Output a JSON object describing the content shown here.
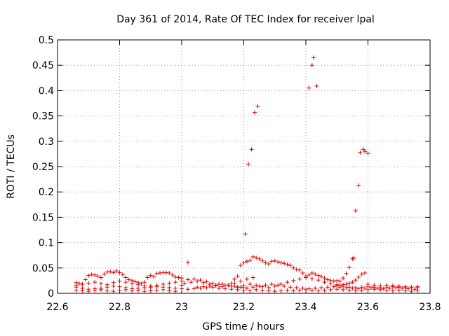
{
  "chart_data": {
    "type": "scatter",
    "title": "Day 361 of 2014, Rate Of TEC Index for receiver lpal",
    "xlabel": "GPS time / hours",
    "ylabel": "ROTI / TECUs",
    "xlim": [
      22.6,
      23.8
    ],
    "ylim": [
      0,
      0.5
    ],
    "xticks": [
      22.6,
      22.8,
      23,
      23.2,
      23.4,
      23.6,
      23.8
    ],
    "xtick_labels": [
      "22.6",
      "22.8",
      "23",
      "23.2",
      "23.4",
      "23.6",
      "23.8"
    ],
    "yticks": [
      0,
      0.05,
      0.1,
      0.15,
      0.2,
      0.25,
      0.3,
      0.35,
      0.4,
      0.45,
      0.5
    ],
    "ytick_labels": [
      "0",
      "0.05",
      "0.1",
      "0.15",
      "0.2",
      "0.25",
      "0.3",
      "0.35",
      "0.4",
      "0.45",
      "0.5"
    ],
    "grid": true,
    "marker": "+",
    "marker_color": "#e00000",
    "series": [
      {
        "name": "ROTI",
        "points": [
          [
            22.66,
            0.021
          ],
          [
            22.67,
            0.019
          ],
          [
            22.68,
            0.018
          ],
          [
            22.69,
            0.027
          ],
          [
            22.7,
            0.035
          ],
          [
            22.71,
            0.037
          ],
          [
            22.72,
            0.036
          ],
          [
            22.73,
            0.034
          ],
          [
            22.74,
            0.031
          ],
          [
            22.75,
            0.038
          ],
          [
            22.76,
            0.042
          ],
          [
            22.77,
            0.043
          ],
          [
            22.78,
            0.041
          ],
          [
            22.79,
            0.044
          ],
          [
            22.8,
            0.041
          ],
          [
            22.81,
            0.037
          ],
          [
            22.82,
            0.031
          ],
          [
            22.83,
            0.027
          ],
          [
            22.84,
            0.025
          ],
          [
            22.85,
            0.023
          ],
          [
            22.86,
            0.021
          ],
          [
            22.87,
            0.019
          ],
          [
            22.88,
            0.022
          ],
          [
            22.89,
            0.031
          ],
          [
            22.9,
            0.035
          ],
          [
            22.91,
            0.033
          ],
          [
            22.92,
            0.039
          ],
          [
            22.93,
            0.04
          ],
          [
            22.94,
            0.041
          ],
          [
            22.95,
            0.041
          ],
          [
            22.96,
            0.04
          ],
          [
            22.97,
            0.036
          ],
          [
            22.98,
            0.032
          ],
          [
            22.99,
            0.031
          ],
          [
            23.0,
            0.03
          ],
          [
            22.66,
            0.012
          ],
          [
            22.68,
            0.01
          ],
          [
            22.7,
            0.008
          ],
          [
            22.72,
            0.009
          ],
          [
            22.74,
            0.01
          ],
          [
            22.76,
            0.012
          ],
          [
            22.78,
            0.014
          ],
          [
            22.8,
            0.013
          ],
          [
            22.82,
            0.011
          ],
          [
            22.84,
            0.009
          ],
          [
            22.86,
            0.01
          ],
          [
            22.88,
            0.011
          ],
          [
            22.9,
            0.012
          ],
          [
            22.92,
            0.013
          ],
          [
            22.94,
            0.012
          ],
          [
            22.96,
            0.011
          ],
          [
            22.98,
            0.01
          ],
          [
            23.0,
            0.009
          ],
          [
            23.02,
            0.008
          ],
          [
            23.04,
            0.009
          ],
          [
            23.06,
            0.01
          ],
          [
            23.08,
            0.011
          ],
          [
            23.1,
            0.012
          ],
          [
            23.12,
            0.01
          ],
          [
            23.14,
            0.009
          ],
          [
            23.16,
            0.008
          ],
          [
            23.18,
            0.007
          ],
          [
            22.66,
            0.006
          ],
          [
            22.68,
            0.005
          ],
          [
            22.7,
            0.004
          ],
          [
            22.72,
            0.006
          ],
          [
            22.74,
            0.007
          ],
          [
            22.76,
            0.005
          ],
          [
            22.78,
            0.004
          ],
          [
            22.8,
            0.006
          ],
          [
            22.82,
            0.007
          ],
          [
            22.84,
            0.005
          ],
          [
            22.86,
            0.006
          ],
          [
            22.88,
            0.004
          ],
          [
            22.9,
            0.005
          ],
          [
            22.92,
            0.006
          ],
          [
            22.94,
            0.007
          ],
          [
            22.96,
            0.005
          ],
          [
            22.98,
            0.004
          ],
          [
            22.66,
            0.016
          ],
          [
            22.68,
            0.018
          ],
          [
            22.7,
            0.02
          ],
          [
            22.72,
            0.022
          ],
          [
            22.74,
            0.019
          ],
          [
            22.76,
            0.017
          ],
          [
            22.78,
            0.021
          ],
          [
            22.8,
            0.024
          ],
          [
            22.82,
            0.022
          ],
          [
            22.84,
            0.019
          ],
          [
            22.86,
            0.017
          ],
          [
            22.88,
            0.015
          ],
          [
            22.9,
            0.014
          ],
          [
            22.92,
            0.016
          ],
          [
            22.94,
            0.018
          ],
          [
            22.96,
            0.02
          ],
          [
            22.98,
            0.022
          ],
          [
            23.0,
            0.024
          ],
          [
            23.02,
            0.027
          ],
          [
            23.04,
            0.028
          ],
          [
            23.06,
            0.026
          ],
          [
            23.08,
            0.023
          ],
          [
            23.1,
            0.02
          ],
          [
            23.12,
            0.018
          ],
          [
            23.14,
            0.016
          ],
          [
            23.16,
            0.014
          ],
          [
            23.18,
            0.012
          ],
          [
            23.2,
            0.011
          ],
          [
            23.02,
            0.061
          ],
          [
            23.0,
            0.016
          ],
          [
            23.01,
            0.02
          ],
          [
            23.03,
            0.022
          ],
          [
            23.05,
            0.024
          ],
          [
            23.07,
            0.021
          ],
          [
            23.09,
            0.018
          ],
          [
            23.11,
            0.015
          ],
          [
            23.13,
            0.013
          ],
          [
            23.15,
            0.016
          ],
          [
            23.17,
            0.02
          ],
          [
            23.19,
            0.024
          ],
          [
            23.21,
            0.028
          ],
          [
            23.23,
            0.031
          ],
          [
            23.05,
            0.012
          ],
          [
            23.07,
            0.013
          ],
          [
            23.09,
            0.014
          ],
          [
            23.11,
            0.016
          ],
          [
            23.13,
            0.018
          ],
          [
            23.15,
            0.016
          ],
          [
            23.17,
            0.014
          ],
          [
            23.19,
            0.012
          ],
          [
            23.21,
            0.01
          ],
          [
            23.23,
            0.012
          ],
          [
            23.25,
            0.014
          ],
          [
            23.27,
            0.016
          ],
          [
            23.29,
            0.018
          ],
          [
            23.31,
            0.016
          ],
          [
            23.33,
            0.014
          ],
          [
            23.35,
            0.012
          ],
          [
            23.37,
            0.011
          ],
          [
            23.39,
            0.01
          ],
          [
            23.41,
            0.009
          ],
          [
            23.43,
            0.01
          ],
          [
            23.45,
            0.011
          ],
          [
            23.47,
            0.012
          ],
          [
            23.49,
            0.013
          ],
          [
            23.51,
            0.012
          ],
          [
            23.53,
            0.011
          ],
          [
            23.55,
            0.01
          ],
          [
            23.57,
            0.009
          ],
          [
            23.59,
            0.01
          ],
          [
            23.61,
            0.011
          ],
          [
            23.63,
            0.01
          ],
          [
            23.65,
            0.009
          ],
          [
            23.67,
            0.01
          ],
          [
            23.69,
            0.011
          ],
          [
            23.71,
            0.01
          ],
          [
            23.73,
            0.009
          ],
          [
            23.75,
            0.008
          ],
          [
            23.16,
            0.02
          ],
          [
            23.17,
            0.028
          ],
          [
            23.18,
            0.034
          ],
          [
            23.19,
            0.055
          ],
          [
            23.2,
            0.06
          ],
          [
            23.205,
            0.117
          ],
          [
            23.21,
            0.063
          ],
          [
            23.215,
            0.255
          ],
          [
            23.22,
            0.065
          ],
          [
            23.225,
            0.284
          ],
          [
            23.23,
            0.072
          ],
          [
            23.235,
            0.357
          ],
          [
            23.24,
            0.07
          ],
          [
            23.245,
            0.369
          ],
          [
            23.25,
            0.068
          ],
          [
            23.26,
            0.064
          ],
          [
            23.27,
            0.06
          ],
          [
            23.28,
            0.058
          ],
          [
            23.29,
            0.063
          ],
          [
            23.3,
            0.064
          ],
          [
            23.31,
            0.062
          ],
          [
            23.32,
            0.06
          ],
          [
            23.33,
            0.059
          ],
          [
            23.34,
            0.057
          ],
          [
            23.35,
            0.055
          ],
          [
            23.36,
            0.05
          ],
          [
            23.37,
            0.047
          ],
          [
            23.38,
            0.046
          ],
          [
            23.39,
            0.04
          ],
          [
            23.4,
            0.034
          ],
          [
            23.41,
            0.036
          ],
          [
            23.42,
            0.04
          ],
          [
            23.43,
            0.038
          ],
          [
            23.44,
            0.035
          ],
          [
            23.45,
            0.033
          ],
          [
            23.46,
            0.03
          ],
          [
            23.47,
            0.027
          ],
          [
            23.48,
            0.025
          ],
          [
            23.49,
            0.024
          ],
          [
            23.5,
            0.025
          ],
          [
            23.51,
            0.024
          ],
          [
            23.52,
            0.03
          ],
          [
            23.53,
            0.039
          ],
          [
            23.54,
            0.051
          ],
          [
            23.55,
            0.068
          ],
          [
            23.555,
            0.07
          ],
          [
            23.41,
            0.405
          ],
          [
            23.42,
            0.45
          ],
          [
            23.425,
            0.465
          ],
          [
            23.435,
            0.409
          ],
          [
            23.56,
            0.163
          ],
          [
            23.57,
            0.213
          ],
          [
            23.575,
            0.278
          ],
          [
            23.585,
            0.284
          ],
          [
            23.59,
            0.28
          ],
          [
            23.6,
            0.276
          ],
          [
            23.59,
            0.04
          ],
          [
            23.58,
            0.038
          ],
          [
            23.57,
            0.032
          ],
          [
            23.56,
            0.026
          ],
          [
            23.55,
            0.022
          ],
          [
            23.54,
            0.02
          ],
          [
            23.53,
            0.018
          ],
          [
            23.52,
            0.017
          ],
          [
            23.51,
            0.016
          ],
          [
            23.5,
            0.015
          ],
          [
            23.18,
            0.012
          ],
          [
            23.2,
            0.015
          ],
          [
            23.22,
            0.018
          ],
          [
            23.24,
            0.016
          ],
          [
            23.26,
            0.013
          ],
          [
            23.28,
            0.011
          ],
          [
            23.3,
            0.014
          ],
          [
            23.32,
            0.018
          ],
          [
            23.34,
            0.022
          ],
          [
            23.36,
            0.025
          ],
          [
            23.38,
            0.028
          ],
          [
            23.4,
            0.031
          ],
          [
            23.42,
            0.029
          ],
          [
            23.44,
            0.026
          ],
          [
            23.46,
            0.022
          ],
          [
            23.48,
            0.019
          ],
          [
            23.5,
            0.017
          ],
          [
            23.52,
            0.014
          ],
          [
            23.54,
            0.012
          ],
          [
            23.56,
            0.011
          ],
          [
            23.58,
            0.012
          ],
          [
            23.6,
            0.013
          ],
          [
            23.62,
            0.012
          ],
          [
            23.64,
            0.011
          ],
          [
            23.66,
            0.012
          ],
          [
            23.68,
            0.013
          ],
          [
            23.7,
            0.012
          ],
          [
            23.72,
            0.011
          ],
          [
            23.74,
            0.012
          ],
          [
            23.76,
            0.011
          ],
          [
            23.2,
            0.006
          ],
          [
            23.22,
            0.005
          ],
          [
            23.24,
            0.007
          ],
          [
            23.26,
            0.006
          ],
          [
            23.28,
            0.005
          ],
          [
            23.3,
            0.004
          ],
          [
            23.32,
            0.005
          ],
          [
            23.34,
            0.006
          ],
          [
            23.36,
            0.005
          ],
          [
            23.38,
            0.006
          ],
          [
            23.4,
            0.007
          ],
          [
            23.42,
            0.006
          ],
          [
            23.44,
            0.005
          ],
          [
            23.46,
            0.006
          ],
          [
            23.48,
            0.007
          ],
          [
            23.5,
            0.008
          ],
          [
            23.52,
            0.007
          ],
          [
            23.54,
            0.006
          ],
          [
            23.56,
            0.005
          ],
          [
            23.58,
            0.006
          ],
          [
            23.6,
            0.007
          ],
          [
            23.62,
            0.008
          ],
          [
            23.64,
            0.007
          ],
          [
            23.66,
            0.006
          ],
          [
            23.68,
            0.005
          ],
          [
            23.7,
            0.006
          ],
          [
            23.72,
            0.005
          ],
          [
            23.74,
            0.004
          ],
          [
            23.76,
            0.005
          ],
          [
            23.6,
            0.018
          ],
          [
            23.62,
            0.016
          ],
          [
            23.64,
            0.015
          ],
          [
            23.66,
            0.016
          ],
          [
            23.68,
            0.015
          ],
          [
            23.7,
            0.014
          ],
          [
            23.72,
            0.013
          ],
          [
            23.74,
            0.012
          ],
          [
            23.76,
            0.013
          ]
        ]
      }
    ]
  }
}
